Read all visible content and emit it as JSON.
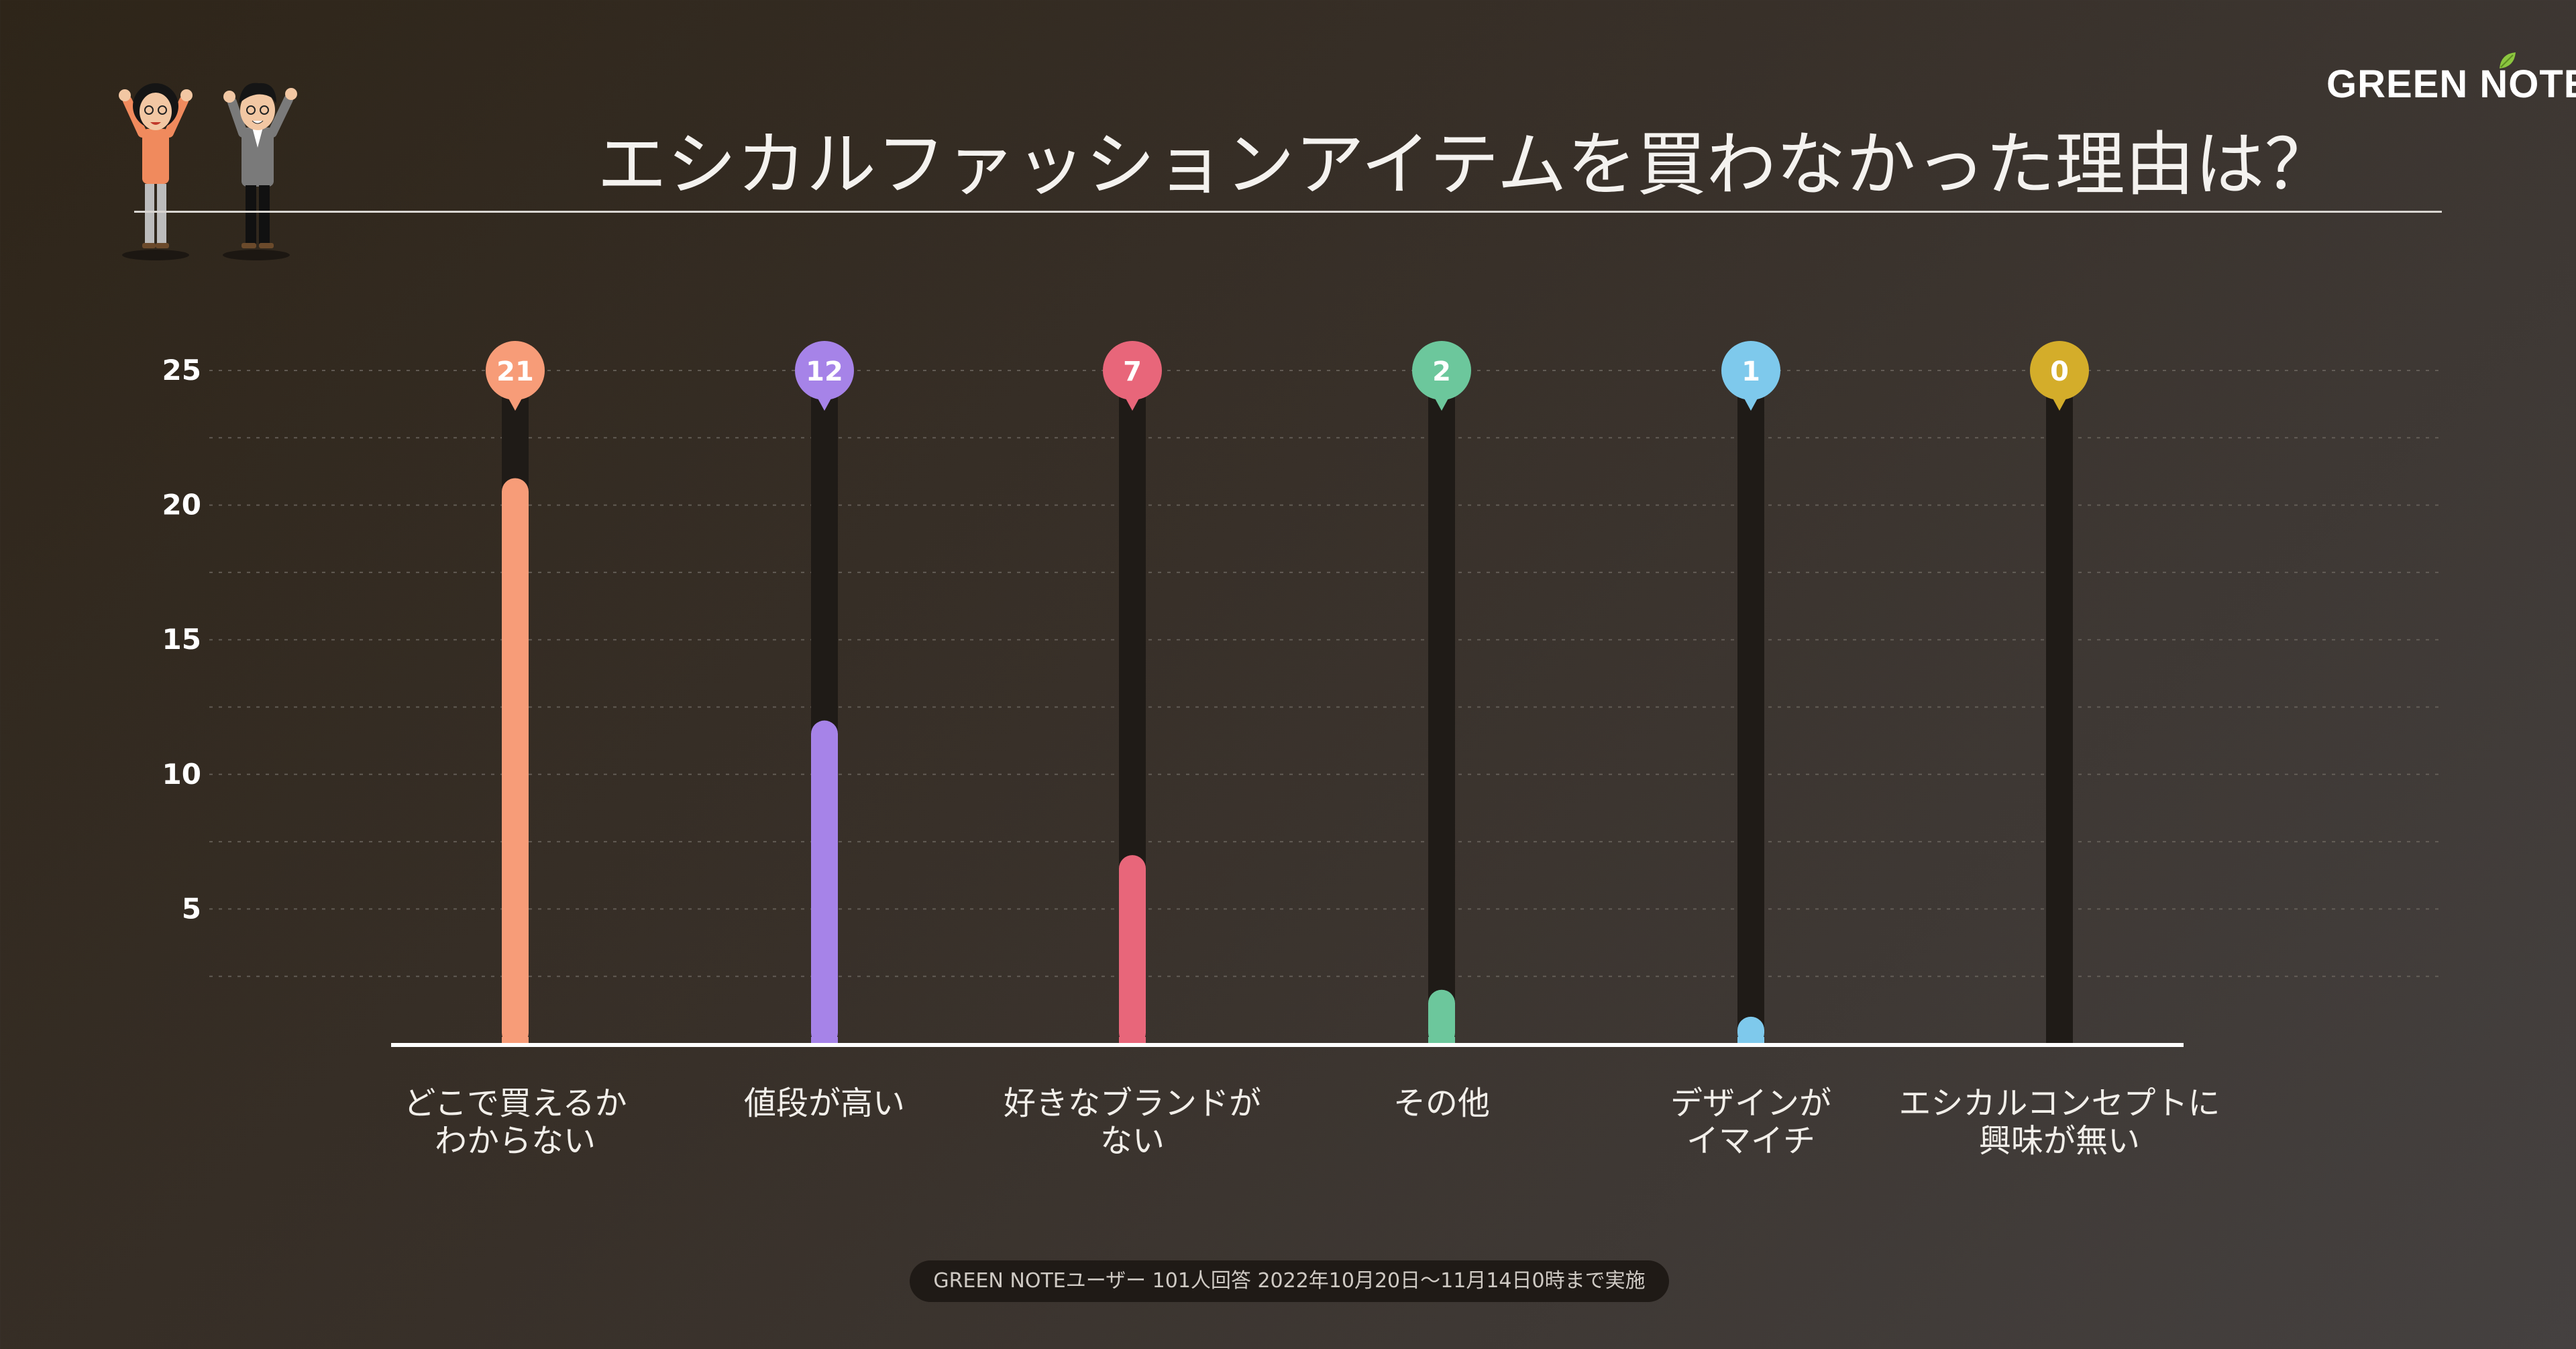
{
  "page": {
    "title": "エシカルファッションアイテムを買わなかった理由は？",
    "brand": "GREEN NOTE",
    "footnote": "GREEN NOTEユーザー 101人回答 2022年10月20日〜11月14日0時まで実施"
  },
  "chart_data": {
    "type": "bar",
    "title": "エシカルファッションアイテムを買わなかった理由は？",
    "categories": [
      [
        "どこで買えるか",
        "わからない"
      ],
      [
        "値段が高い"
      ],
      [
        "好きなブランドが",
        "ない"
      ],
      [
        "その他"
      ],
      [
        "デザインが",
        "イマイチ"
      ],
      [
        "エシカルコンセプトに",
        "興味が無い"
      ]
    ],
    "values": [
      21,
      12,
      7,
      2,
      1,
      0
    ],
    "colors": [
      "#f79c78",
      "#a683e8",
      "#e8667a",
      "#6cc79c",
      "#7ec9ec",
      "#d4ad2a"
    ],
    "yticks": [
      5,
      10,
      15,
      20,
      25
    ],
    "ylim": [
      0,
      25
    ],
    "grid": true,
    "xlabel": "",
    "ylabel": ""
  },
  "colors": {
    "track": "#1f1b17",
    "grid": "#6d6760",
    "axis": "#ffffff",
    "leaf": "#8cc63f"
  }
}
